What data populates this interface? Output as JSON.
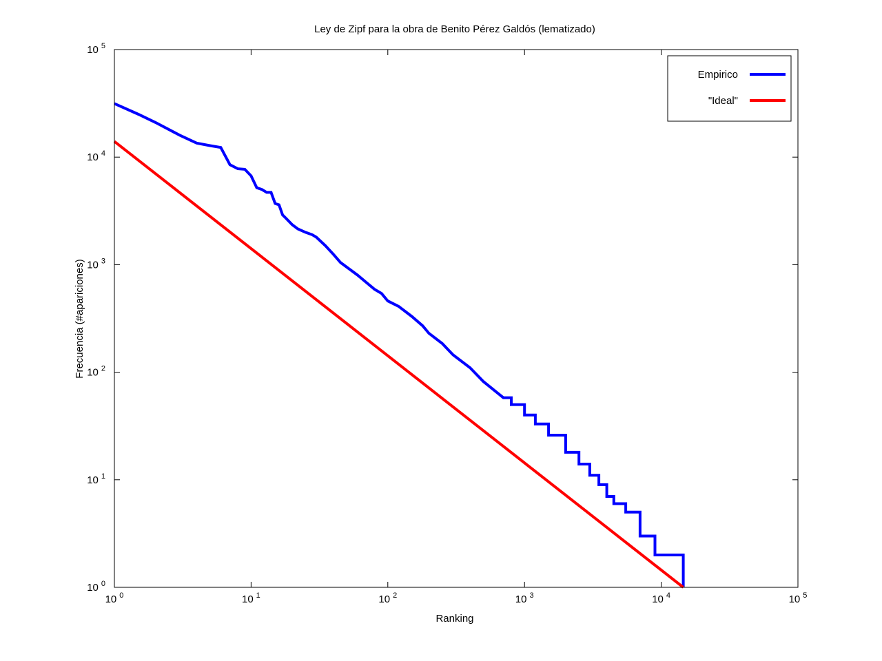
{
  "chart_data": {
    "type": "line",
    "title": "Ley de Zipf para la obra de Benito Pérez Galdós (lematizado)",
    "xlabel": "Ranking",
    "ylabel": "Frecuencia (#apariciones)",
    "xscale": "log",
    "yscale": "log",
    "xlim": [
      1,
      100000
    ],
    "ylim": [
      1,
      100000
    ],
    "x_ticks": [
      {
        "base": "10",
        "exp": "0",
        "value": 1
      },
      {
        "base": "10",
        "exp": "1",
        "value": 10
      },
      {
        "base": "10",
        "exp": "2",
        "value": 100
      },
      {
        "base": "10",
        "exp": "3",
        "value": 1000
      },
      {
        "base": "10",
        "exp": "4",
        "value": 10000
      },
      {
        "base": "10",
        "exp": "5",
        "value": 100000
      }
    ],
    "y_ticks": [
      {
        "base": "10",
        "exp": "0",
        "value": 1
      },
      {
        "base": "10",
        "exp": "1",
        "value": 10
      },
      {
        "base": "10",
        "exp": "2",
        "value": 100
      },
      {
        "base": "10",
        "exp": "3",
        "value": 1000
      },
      {
        "base": "10",
        "exp": "4",
        "value": 10000
      },
      {
        "base": "10",
        "exp": "5",
        "value": 100000
      }
    ],
    "grid": false,
    "legend_position": "top-right",
    "series": [
      {
        "name": "Empirico",
        "color": "#0000ff",
        "style": "steps",
        "x": [
          1,
          1.5,
          2,
          3,
          4,
          5,
          6,
          7,
          8,
          9,
          10,
          11,
          12,
          13,
          14,
          15,
          16,
          17,
          18,
          20,
          22,
          25,
          28,
          30,
          35,
          40,
          45,
          50,
          60,
          70,
          80,
          90,
          100,
          120,
          150,
          180,
          200,
          250,
          300,
          400,
          500,
          600,
          700,
          800,
          1000,
          1200,
          1500,
          2000,
          2500,
          3000,
          3500,
          4000,
          4500,
          5500,
          7000,
          9000,
          14500
        ],
        "y": [
          31500,
          25000,
          21000,
          16000,
          13500,
          12800,
          12300,
          8500,
          7800,
          7700,
          6700,
          5200,
          5000,
          4700,
          4700,
          3700,
          3600,
          2900,
          2700,
          2350,
          2150,
          2000,
          1900,
          1800,
          1500,
          1250,
          1050,
          950,
          800,
          680,
          590,
          540,
          460,
          410,
          330,
          270,
          230,
          185,
          145,
          110,
          82,
          68,
          58,
          50,
          40,
          33,
          26,
          18,
          14,
          11,
          9,
          7,
          6,
          5,
          3,
          2,
          1
        ]
      },
      {
        "name": "\"Ideal\"",
        "color": "#ff0000",
        "style": "line",
        "x": [
          1,
          14500
        ],
        "y": [
          14000,
          1
        ]
      }
    ]
  }
}
